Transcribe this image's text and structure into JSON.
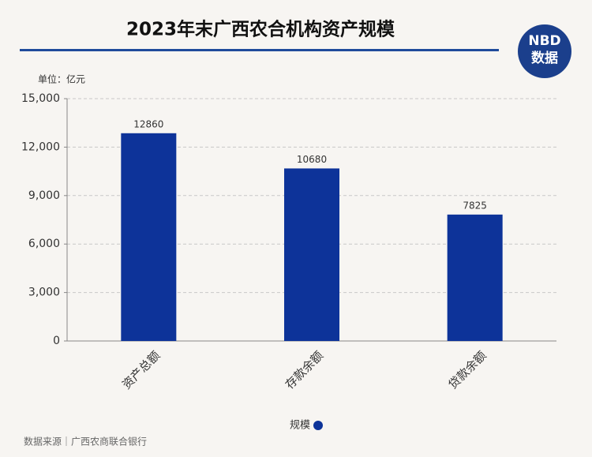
{
  "chart_data": {
    "type": "bar",
    "title": "2023年末广西农合机构资产规模",
    "unit_label": "单位：亿元",
    "categories": [
      "资产总额",
      "存款余额",
      "贷款余额"
    ],
    "series": [
      {
        "name": "规模",
        "color": "#0d3399",
        "values": [
          12860,
          10680,
          7825
        ]
      }
    ],
    "ylim": [
      0,
      15000
    ],
    "yticks": [
      0,
      {
        "value": 3000,
        "label": "3,000"
      },
      {
        "value": 6000,
        "label": "6,000"
      },
      {
        "value": 9000,
        "label": "9,000"
      },
      {
        "value": 12000,
        "label": "12,000"
      },
      {
        "value": 15000,
        "label": "15,000"
      }
    ],
    "grid": true,
    "legend": "bottom",
    "source": "数据来源｜广西农商联合银行",
    "logo_text": "NBD",
    "logo_subtext": "数据"
  }
}
